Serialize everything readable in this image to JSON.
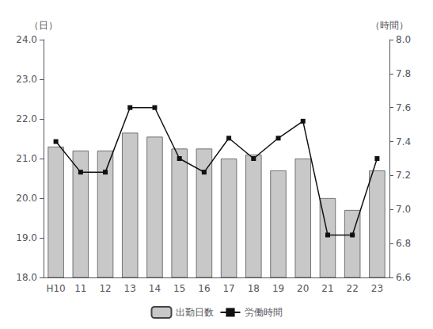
{
  "chart_data": {
    "type": "bar",
    "categories": [
      "H10",
      "11",
      "12",
      "13",
      "14",
      "15",
      "16",
      "17",
      "18",
      "19",
      "20",
      "21",
      "22",
      "23"
    ],
    "series": [
      {
        "name": "出勤日数",
        "type": "bar",
        "color": "#c8c8c8",
        "values": [
          21.3,
          21.2,
          21.2,
          21.65,
          21.55,
          21.25,
          21.25,
          21.0,
          21.1,
          20.7,
          21.0,
          20.0,
          19.7,
          20.7
        ]
      },
      {
        "name": "労働時間",
        "type": "line",
        "axis": "y2",
        "color": "#111111",
        "marker": "square",
        "values": [
          7.4,
          7.22,
          7.22,
          7.6,
          7.6,
          7.3,
          7.22,
          7.42,
          7.3,
          7.42,
          7.52,
          6.85,
          6.85,
          7.3
        ]
      }
    ],
    "ylabel": "（日）",
    "y2label": "（時間）",
    "ylim": [
      18.0,
      24.0
    ],
    "yticks": [
      {
        "value": 18,
        "label": "18.0"
      },
      {
        "value": 19,
        "label": "19.0"
      },
      {
        "value": 20,
        "label": "20.0"
      },
      {
        "value": 21,
        "label": "21.0"
      },
      {
        "value": 22,
        "label": "22.0"
      },
      {
        "value": 23,
        "label": "23.0"
      },
      {
        "value": 24,
        "label": "24.0"
      }
    ],
    "y2lim": [
      6.6,
      8.0
    ],
    "y2ticks": [
      6.6,
      6.8,
      {
        "value": 7,
        "label": "7.0"
      },
      7.2,
      7.4,
      7.6,
      7.8,
      {
        "value": 8,
        "label": "8.0"
      }
    ],
    "grid": false,
    "legend": "bottom"
  }
}
